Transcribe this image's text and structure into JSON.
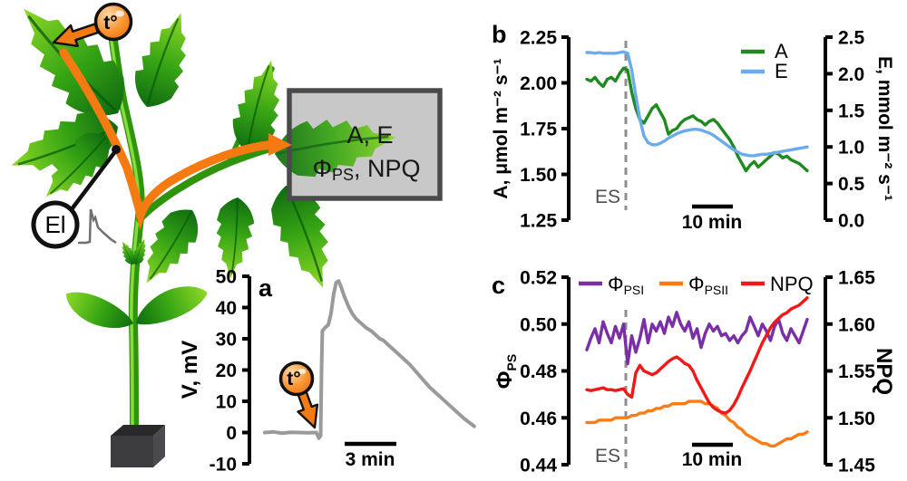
{
  "figure": {
    "background": "#ffffff",
    "illustration": {
      "stimulus_badge": "t°",
      "electrode_label": "El",
      "box": {
        "line1": "A, E",
        "phi": "Φ",
        "phi_sub": "PS",
        "line2_rest": ", NPQ"
      }
    }
  },
  "colors": {
    "trace_gray": "#9a9a9a",
    "a_green": "#1f8a1f",
    "e_blue": "#6aabee",
    "psi_purple": "#7a2fa6",
    "psii_orange": "#f87d18",
    "npq_red": "#f31717",
    "orange_arrow": "#f57a12",
    "dashed_gray": "#8f8f8f",
    "box_fill": "#c8c8c8",
    "box_border": "#4a4a4a"
  },
  "chart_data": [
    {
      "id": "a",
      "type": "line",
      "panel_label": "a",
      "ylabel": "V, mV",
      "ylim": [
        -10,
        50
      ],
      "yticks": [
        "50",
        "40",
        "30",
        "20",
        "10",
        "0",
        "-10"
      ],
      "scalebar_label": "3 min",
      "stimulus_badge": "t°",
      "grid": false,
      "series": [
        {
          "name": "V",
          "color": "#9a9a9a",
          "points": [
            [
              0,
              0
            ],
            [
              0.5,
              0.2
            ],
            [
              1,
              -0.2
            ],
            [
              1.5,
              0.1
            ],
            [
              2,
              0
            ],
            [
              2.5,
              -0.1
            ],
            [
              3,
              0
            ],
            [
              3.15,
              -1.8
            ],
            [
              3.25,
              -1
            ],
            [
              3.3,
              20
            ],
            [
              3.35,
              32.5
            ],
            [
              3.5,
              33.5
            ],
            [
              3.7,
              34.5
            ],
            [
              3.85,
              38
            ],
            [
              4.0,
              44
            ],
            [
              4.15,
              48
            ],
            [
              4.3,
              48.5
            ],
            [
              4.45,
              46.5
            ],
            [
              4.6,
              44
            ],
            [
              4.75,
              42
            ],
            [
              4.9,
              40
            ],
            [
              5.1,
              38
            ],
            [
              5.3,
              36.5
            ],
            [
              5.6,
              35
            ],
            [
              5.9,
              33.5
            ],
            [
              6.2,
              32.5
            ],
            [
              6.5,
              31
            ],
            [
              6.7,
              30
            ],
            [
              6.9,
              29.5
            ],
            [
              7.1,
              28.5
            ],
            [
              7.4,
              27
            ],
            [
              7.7,
              25.5
            ],
            [
              8.0,
              24
            ],
            [
              8.4,
              22
            ],
            [
              8.8,
              19.5
            ],
            [
              9.2,
              17
            ],
            [
              9.6,
              14.5
            ],
            [
              10.0,
              12.5
            ],
            [
              10.4,
              10.5
            ],
            [
              10.8,
              8.5
            ],
            [
              11.2,
              6.5
            ],
            [
              11.6,
              4.5
            ],
            [
              12.0,
              2.8
            ],
            [
              12.2,
              2
            ]
          ]
        }
      ]
    },
    {
      "id": "b",
      "type": "line",
      "panel_label": "b",
      "ylabel_left": "A, μmol m⁻² s⁻¹",
      "ylabel_right": "E, mmol m⁻² s⁻¹",
      "ylim_left": [
        1.25,
        2.25
      ],
      "ylim_right": [
        0.0,
        2.5
      ],
      "yticks_left": [
        "2.25",
        "2.00",
        "1.75",
        "1.50",
        "1.25"
      ],
      "yticks_right": [
        "2.5",
        "2.0",
        "1.5",
        "1.0",
        "0.5",
        "0.0"
      ],
      "x_span_min": 54,
      "es_label": "ES",
      "es_time_min": 9.6,
      "scalebar_label": "10 min",
      "grid": false,
      "legend_position": "top-right",
      "series": [
        {
          "name": "A",
          "axis": "left",
          "color": "#1f8a1f",
          "values": [
            2.02,
            2.01,
            2.03,
            2.0,
            1.98,
            2.02,
            2.03,
            2.01,
            2.05,
            2.08,
            2.07,
            1.95,
            1.86,
            1.8,
            1.78,
            1.82,
            1.86,
            1.88,
            1.84,
            1.8,
            1.72,
            1.74,
            1.75,
            1.78,
            1.8,
            1.81,
            1.82,
            1.8,
            1.79,
            1.77,
            1.79,
            1.8,
            1.78,
            1.75,
            1.72,
            1.69,
            1.65,
            1.6,
            1.56,
            1.52,
            1.55,
            1.57,
            1.54,
            1.56,
            1.58,
            1.6,
            1.62,
            1.61,
            1.59,
            1.6,
            1.58,
            1.57,
            1.56,
            1.54,
            1.52
          ]
        },
        {
          "name": "E",
          "axis": "right",
          "color": "#6aabee",
          "values": [
            2.29,
            2.29,
            2.28,
            2.29,
            2.28,
            2.28,
            2.28,
            2.28,
            2.29,
            2.3,
            2.28,
            2.05,
            1.7,
            1.38,
            1.15,
            1.06,
            1.03,
            1.03,
            1.05,
            1.08,
            1.12,
            1.15,
            1.18,
            1.2,
            1.22,
            1.23,
            1.24,
            1.24,
            1.23,
            1.21,
            1.19,
            1.16,
            1.12,
            1.08,
            1.04,
            1.0,
            0.96,
            0.93,
            0.9,
            0.89,
            0.88,
            0.88,
            0.89,
            0.9,
            0.9,
            0.91,
            0.92,
            0.93,
            0.94,
            0.95,
            0.96,
            0.97,
            0.98,
            0.99,
            1.0
          ]
        }
      ]
    },
    {
      "id": "c",
      "type": "line",
      "panel_label": "c",
      "ylabel_left_base": "Φ",
      "ylabel_left_sub": "PS",
      "ylabel_right": "NPQ",
      "ylim_left": [
        0.44,
        0.52
      ],
      "ylim_right": [
        1.45,
        1.65
      ],
      "yticks_left": [
        "0.52",
        "0.50",
        "0.48",
        "0.46",
        "0.44"
      ],
      "yticks_right": [
        "1.65",
        "1.60",
        "1.55",
        "1.50",
        "1.45"
      ],
      "x_span_min": 54,
      "es_label": "ES",
      "es_time_min": 9.6,
      "scalebar_label": "10 min",
      "grid": false,
      "legend_position": "top",
      "series": [
        {
          "name": "Φ_PSI",
          "name_base": "Φ",
          "name_sub": "PSI",
          "axis": "left",
          "color": "#7a2fa6",
          "values": [
            0.489,
            0.494,
            0.498,
            0.492,
            0.501,
            0.496,
            0.492,
            0.499,
            0.494,
            0.5,
            0.483,
            0.495,
            0.488,
            0.494,
            0.502,
            0.492,
            0.5,
            0.497,
            0.501,
            0.496,
            0.503,
            0.499,
            0.505,
            0.5,
            0.497,
            0.501,
            0.494,
            0.498,
            0.49,
            0.496,
            0.5,
            0.497,
            0.499,
            0.495,
            0.496,
            0.493,
            0.495,
            0.492,
            0.495,
            0.497,
            0.503,
            0.499,
            0.495,
            0.5,
            0.497,
            0.493,
            0.499,
            0.502,
            0.496,
            0.493,
            0.498,
            0.495,
            0.492,
            0.497,
            0.502
          ]
        },
        {
          "name": "Φ_PSII",
          "name_base": "Φ",
          "name_sub": "PSII",
          "axis": "left",
          "color": "#f87d18",
          "values": [
            0.458,
            0.458,
            0.458,
            0.459,
            0.459,
            0.459,
            0.459,
            0.46,
            0.46,
            0.46,
            0.46,
            0.461,
            0.461,
            0.462,
            0.462,
            0.463,
            0.463,
            0.464,
            0.464,
            0.465,
            0.465,
            0.466,
            0.466,
            0.466,
            0.466,
            0.467,
            0.467,
            0.467,
            0.467,
            0.466,
            0.466,
            0.465,
            0.464,
            0.462,
            0.461,
            0.459,
            0.458,
            0.456,
            0.455,
            0.453,
            0.452,
            0.451,
            0.45,
            0.449,
            0.449,
            0.448,
            0.448,
            0.449,
            0.45,
            0.451,
            0.451,
            0.452,
            0.453,
            0.453,
            0.454
          ]
        },
        {
          "name": "NPQ",
          "name_base": "NPQ",
          "name_sub": "",
          "axis": "right",
          "color": "#f31717",
          "values": [
            1.53,
            1.529,
            1.53,
            1.531,
            1.532,
            1.53,
            1.53,
            1.529,
            1.53,
            1.531,
            1.525,
            1.522,
            1.548,
            1.556,
            1.55,
            1.548,
            1.546,
            1.548,
            1.552,
            1.556,
            1.56,
            1.563,
            1.565,
            1.562,
            1.558,
            1.556,
            1.55,
            1.54,
            1.532,
            1.524,
            1.516,
            1.511,
            1.508,
            1.506,
            1.505,
            1.508,
            1.514,
            1.522,
            1.532,
            1.541,
            1.55,
            1.56,
            1.57,
            1.58,
            1.588,
            1.596,
            1.602,
            1.606,
            1.61,
            1.612,
            1.616,
            1.618,
            1.62,
            1.624,
            1.628
          ]
        }
      ]
    }
  ]
}
